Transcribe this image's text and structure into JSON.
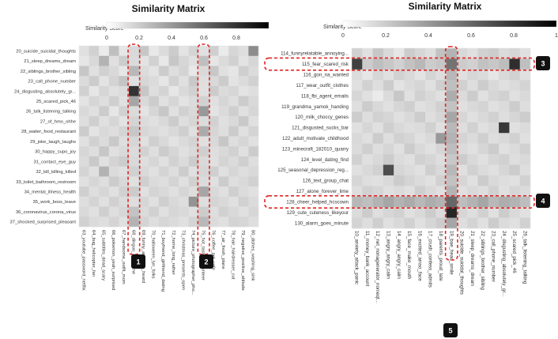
{
  "chart_data": [
    {
      "type": "heatmap",
      "title": "Similarity Matrix",
      "colorbar": {
        "label": "Similarity Score",
        "ticks": [
          "0",
          "0.2",
          "0.4",
          "0.6",
          "0.8"
        ],
        "range": [
          0,
          1
        ],
        "colors": [
          "#ffffff",
          "#000000"
        ]
      },
      "y_labels": [
        "20_suicide_suicidal_thoughts",
        "21_sleep_dreams_dream",
        "22_siblings_brother_sibling",
        "23_call_phone_number",
        "24_disgusting_absolutely_gr...",
        "25_scared_pick_46",
        "26_talk_listening_talking",
        "27_of_hmo_ohhe",
        "28_waiter_food_restaurant",
        "29_joke_laugh_laughs",
        "30_happy_supo_joy",
        "31_contact_eye_guy",
        "32_kill_killing_killed",
        "33_toilet_bathroom_restroom",
        "34_mental_illness_health",
        "35_work_boss_leave",
        "36_coronavirus_corona_virus",
        "37_shocked_surprised_pleasant"
      ],
      "x_labels": [
        "63_youtube_password_netflix",
        "64_bug_helicopter_fan",
        "65_subtitles_dead_scary",
        "66_pokemon_yeah_surprised",
        "67_handsome_outfit_mom",
        "68_dinguo_porn_time",
        "69_funny_amazing_heard",
        "70_halloween_lyn_folks",
        "71_boyfriend_girlfriend_dating",
        "72_home_long_rather",
        "73_christmas_presents_open",
        "74_picture_photographer_pho...",
        "75_hot_tasted_volunteer",
        "76_coffee_pot_cafe",
        "77_air_fresh_plane",
        "78_hair_hairdresser_cut",
        "79_negative_positive_attitude",
        "80_dishes_washing_sink"
      ],
      "values": [
        [
          0.12,
          0.18,
          0.08,
          0.25,
          0.1,
          0.15,
          0.22,
          0.09,
          0.14,
          0.2,
          0.11,
          0.17,
          0.12,
          0.19,
          0.08,
          0.16,
          0.13,
          0.45
        ],
        [
          0.1,
          0.15,
          0.3,
          0.12,
          0.2,
          0.14,
          0.11,
          0.18,
          0.09,
          0.22,
          0.16,
          0.12,
          0.25,
          0.1,
          0.14,
          0.18,
          0.11,
          0.16
        ],
        [
          0.22,
          0.12,
          0.18,
          0.15,
          0.1,
          0.28,
          0.14,
          0.11,
          0.2,
          0.13,
          0.17,
          0.09,
          0.15,
          0.22,
          0.12,
          0.1,
          0.19,
          0.14
        ],
        [
          0.14,
          0.2,
          0.11,
          0.17,
          0.23,
          0.12,
          0.16,
          0.14,
          0.1,
          0.18,
          0.12,
          0.21,
          0.13,
          0.15,
          0.2,
          0.11,
          0.14,
          0.18
        ],
        [
          0.18,
          0.1,
          0.16,
          0.12,
          0.14,
          0.8,
          0.22,
          0.13,
          0.17,
          0.1,
          0.15,
          0.18,
          0.12,
          0.2,
          0.14,
          0.16,
          0.11,
          0.13
        ],
        [
          0.11,
          0.16,
          0.13,
          0.19,
          0.12,
          0.35,
          0.15,
          0.2,
          0.12,
          0.16,
          0.11,
          0.14,
          0.18,
          0.12,
          0.16,
          0.13,
          0.2,
          0.15
        ],
        [
          0.15,
          0.12,
          0.2,
          0.1,
          0.18,
          0.14,
          0.11,
          0.16,
          0.22,
          0.12,
          0.18,
          0.15,
          0.4,
          0.11,
          0.14,
          0.19,
          0.12,
          0.16
        ],
        [
          0.13,
          0.19,
          0.12,
          0.16,
          0.11,
          0.17,
          0.14,
          0.12,
          0.15,
          0.2,
          0.13,
          0.16,
          0.14,
          0.18,
          0.12,
          0.15,
          0.21,
          0.12
        ],
        [
          0.2,
          0.11,
          0.15,
          0.13,
          0.17,
          0.22,
          0.16,
          0.14,
          0.12,
          0.15,
          0.19,
          0.12,
          0.33,
          0.16,
          0.13,
          0.2,
          0.12,
          0.17
        ],
        [
          0.12,
          0.18,
          0.14,
          0.21,
          0.13,
          0.16,
          0.12,
          0.19,
          0.15,
          0.11,
          0.14,
          0.17,
          0.12,
          0.15,
          0.22,
          0.13,
          0.16,
          0.12
        ],
        [
          0.16,
          0.13,
          0.22,
          0.12,
          0.15,
          0.14,
          0.18,
          0.13,
          0.2,
          0.16,
          0.12,
          0.15,
          0.19,
          0.13,
          0.15,
          0.18,
          0.12,
          0.2
        ],
        [
          0.14,
          0.21,
          0.12,
          0.17,
          0.2,
          0.15,
          0.13,
          0.16,
          0.12,
          0.18,
          0.14,
          0.2,
          0.15,
          0.12,
          0.17,
          0.14,
          0.19,
          0.13
        ],
        [
          0.17,
          0.12,
          0.3,
          0.14,
          0.12,
          0.18,
          0.15,
          0.12,
          0.17,
          0.13,
          0.2,
          0.12,
          0.16,
          0.19,
          0.12,
          0.16,
          0.13,
          0.15
        ],
        [
          0.12,
          0.16,
          0.13,
          0.2,
          0.15,
          0.12,
          0.19,
          0.14,
          0.13,
          0.17,
          0.12,
          0.18,
          0.14,
          0.12,
          0.2,
          0.13,
          0.15,
          0.18
        ],
        [
          0.19,
          0.13,
          0.16,
          0.12,
          0.18,
          0.2,
          0.12,
          0.17,
          0.15,
          0.12,
          0.16,
          0.13,
          0.35,
          0.15,
          0.12,
          0.19,
          0.14,
          0.12
        ],
        [
          0.13,
          0.17,
          0.12,
          0.18,
          0.14,
          0.13,
          0.16,
          0.12,
          0.19,
          0.15,
          0.13,
          0.42,
          0.13,
          0.17,
          0.15,
          0.12,
          0.18,
          0.14
        ],
        [
          0.15,
          0.12,
          0.19,
          0.13,
          0.16,
          0.24,
          0.14,
          0.18,
          0.12,
          0.16,
          0.15,
          0.12,
          0.2,
          0.13,
          0.18,
          0.15,
          0.12,
          0.16
        ],
        [
          0.18,
          0.14,
          0.13,
          0.17,
          0.12,
          0.3,
          0.17,
          0.13,
          0.16,
          0.14,
          0.12,
          0.17,
          0.28,
          0.14,
          0.12,
          0.17,
          0.16,
          0.13
        ]
      ]
    },
    {
      "type": "heatmap",
      "title": "Similarity Matrix",
      "colorbar": {
        "label": "Similarity Score",
        "ticks": [
          "0",
          "0.2",
          "0.4",
          "0.6",
          "0.8",
          "1"
        ],
        "range": [
          0,
          1
        ],
        "colors": [
          "#ffffff",
          "#000000"
        ]
      },
      "y_labels": [
        "114_funnyrelatable_annoying...",
        "115_fear_scared_risk",
        "116_gon_na_wanted",
        "117_wear_outfit_clothes",
        "118_fbi_agent_emails",
        "119_grandma_yamok_handing",
        "120_milk_choccy_genes",
        "121_disgusted_sucks_bar",
        "122_adult_motivate_childhood",
        "123_minecraft_182010_quarry",
        "124_level_dating_find",
        "125_seasonal_depression_reg...",
        "126_text_group_chat",
        "127_alone_forever_lime",
        "128_cheer_helped_hcscown",
        "129_cute_cuteness_likeyour",
        "130_alarm_goes_minute"
      ],
      "x_labels": [
        "10_anxiety_attack_panic",
        "11_money_bank_account",
        "12_net_nonagenerator_nomeqt...",
        "13_angry_angry_calm",
        "14_angry_angry_calm",
        "15_face_make_mouth",
        "16_excited_amso_face",
        "17_crush_confess_admits",
        "18_parents_proud_late",
        "19_bae_head_smile",
        "20_suicide_suicidal_thoughts",
        "21_sleep_dreams_dream",
        "22_siblings_brother_sibling",
        "23_call_phone_number",
        "24_disgusting_absolutely_gr...",
        "25_scared_pick_46",
        "26_talk_listening_talking"
      ],
      "values": [
        [
          0.18,
          0.12,
          0.22,
          0.15,
          0.1,
          0.2,
          0.16,
          0.13,
          0.24,
          0.3,
          0.15,
          0.12,
          0.18,
          0.2,
          0.14,
          0.16,
          0.12
        ],
        [
          0.75,
          0.2,
          0.25,
          0.22,
          0.18,
          0.24,
          0.28,
          0.2,
          0.22,
          0.55,
          0.2,
          0.18,
          0.24,
          0.22,
          0.26,
          0.82,
          0.25
        ],
        [
          0.14,
          0.1,
          0.16,
          0.12,
          0.18,
          0.15,
          0.11,
          0.17,
          0.13,
          0.28,
          0.12,
          0.16,
          0.14,
          0.1,
          0.15,
          0.18,
          0.12
        ],
        [
          0.12,
          0.18,
          0.13,
          0.2,
          0.11,
          0.14,
          0.16,
          0.12,
          0.19,
          0.25,
          0.18,
          0.13,
          0.2,
          0.15,
          0.12,
          0.14,
          0.17
        ],
        [
          0.16,
          0.12,
          0.08,
          0.14,
          0.22,
          0.12,
          0.18,
          0.15,
          0.12,
          0.32,
          0.14,
          0.2,
          0.12,
          0.16,
          0.18,
          0.12,
          0.15
        ],
        [
          0.13,
          0.2,
          0.15,
          0.12,
          0.16,
          0.19,
          0.12,
          0.14,
          0.18,
          0.24,
          0.12,
          0.15,
          0.17,
          0.12,
          0.14,
          0.2,
          0.13
        ],
        [
          0.2,
          0.13,
          0.18,
          0.16,
          0.12,
          0.15,
          0.2,
          0.13,
          0.16,
          0.35,
          0.16,
          0.12,
          0.15,
          0.18,
          0.13,
          0.16,
          0.2
        ],
        [
          0.12,
          0.16,
          0.12,
          0.19,
          0.15,
          0.13,
          0.14,
          0.18,
          0.12,
          0.28,
          0.13,
          0.18,
          0.12,
          0.15,
          0.78,
          0.12,
          0.14
        ],
        [
          0.15,
          0.12,
          0.2,
          0.13,
          0.18,
          0.16,
          0.12,
          0.15,
          0.4,
          0.3,
          0.17,
          0.14,
          0.19,
          0.13,
          0.15,
          0.18,
          0.12
        ],
        [
          0.14,
          0.19,
          0.13,
          0.16,
          0.12,
          0.2,
          0.15,
          0.12,
          0.16,
          0.26,
          0.14,
          0.12,
          0.16,
          0.2,
          0.12,
          0.14,
          0.18
        ],
        [
          0.18,
          0.12,
          0.15,
          0.2,
          0.14,
          0.12,
          0.18,
          0.16,
          0.13,
          0.22,
          0.2,
          0.15,
          0.12,
          0.16,
          0.18,
          0.13,
          0.15
        ],
        [
          0.12,
          0.15,
          0.18,
          0.7,
          0.16,
          0.14,
          0.12,
          0.19,
          0.15,
          0.28,
          0.12,
          0.18,
          0.14,
          0.12,
          0.16,
          0.2,
          0.13
        ],
        [
          0.16,
          0.13,
          0.12,
          0.15,
          0.2,
          0.17,
          0.14,
          0.12,
          0.18,
          0.24,
          0.16,
          0.12,
          0.2,
          0.15,
          0.13,
          0.12,
          0.18
        ],
        [
          0.13,
          0.18,
          0.16,
          0.12,
          0.14,
          0.12,
          0.19,
          0.15,
          0.12,
          0.3,
          0.12,
          0.15,
          0.13,
          0.18,
          0.12,
          0.16,
          0.14
        ],
        [
          0.28,
          0.25,
          0.3,
          0.35,
          0.3,
          0.33,
          0.28,
          0.32,
          0.3,
          0.6,
          0.26,
          0.3,
          0.35,
          0.28,
          0.32,
          0.3,
          0.26
        ],
        [
          0.14,
          0.2,
          0.13,
          0.16,
          0.18,
          0.12,
          0.15,
          0.2,
          0.14,
          0.85,
          0.16,
          0.13,
          0.18,
          0.12,
          0.2,
          0.15,
          0.12
        ],
        [
          0.17,
          0.13,
          0.19,
          0.12,
          0.15,
          0.18,
          0.12,
          0.16,
          0.2,
          0.35,
          0.13,
          0.17,
          0.12,
          0.2,
          0.14,
          0.12,
          0.18
        ]
      ]
    }
  ],
  "annotations": {
    "badges": [
      "1",
      "2",
      "3",
      "4",
      "5"
    ],
    "accent_color": "#e02424",
    "badge_color": "#111111"
  }
}
